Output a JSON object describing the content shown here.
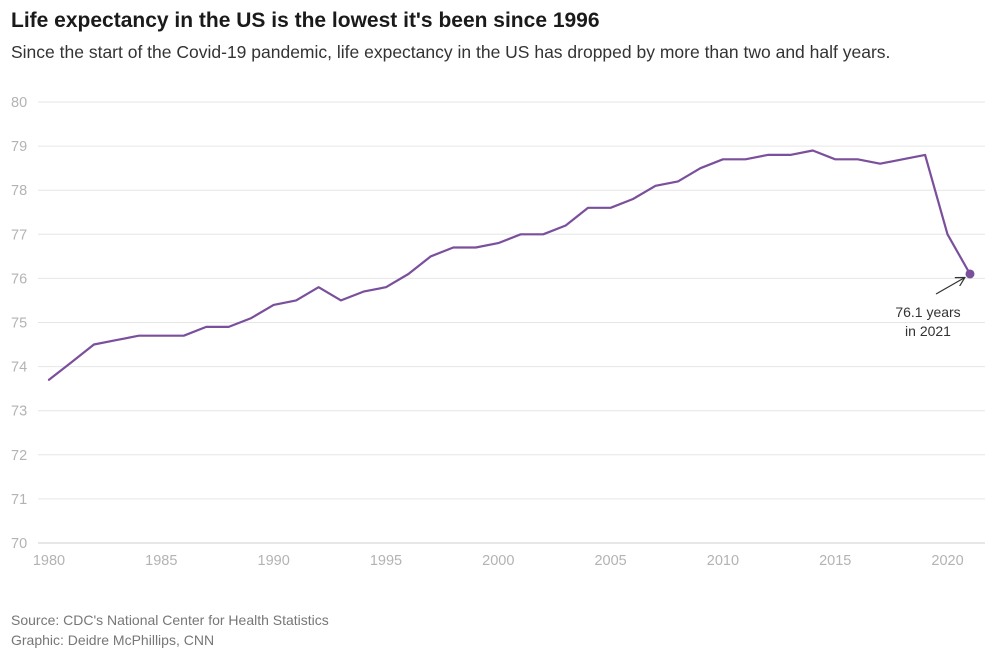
{
  "title": "Life expectancy in the US is the lowest it's been since 1996",
  "subtitle": "Since the start of the Covid-19 pandemic, life expectancy in the US has dropped by more than two and half years.",
  "source": {
    "line1": "Source: CDC's National Center for Health Statistics",
    "line2": "Graphic: Deidre McPhillips, CNN"
  },
  "chart_data": {
    "type": "line",
    "title": "Life expectancy in the US is the lowest it's been since 1996",
    "subtitle": "Since the start of the Covid-19 pandemic, life expectancy in the US has dropped by more than two and half years.",
    "xlabel": "",
    "ylabel": "",
    "xlim": [
      1980,
      2021
    ],
    "ylim": [
      70,
      80
    ],
    "x_ticks": [
      "1980",
      "1985",
      "1990",
      "1995",
      "2000",
      "2005",
      "2010",
      "2015",
      "2020"
    ],
    "y_ticks": [
      "70",
      "71",
      "72",
      "73",
      "74",
      "75",
      "76",
      "77",
      "78",
      "79",
      "80"
    ],
    "grid": true,
    "line_color": "#7a4f9c",
    "series": [
      {
        "x": [
          1980,
          1981,
          1982,
          1983,
          1984,
          1985,
          1986,
          1987,
          1988,
          1989,
          1990,
          1991,
          1992,
          1993,
          1994,
          1995,
          1996,
          1997,
          1998,
          1999,
          2000,
          2001,
          2002,
          2003,
          2004,
          2005,
          2006,
          2007,
          2008,
          2009,
          2010,
          2011,
          2012,
          2013,
          2014,
          2015,
          2016,
          2017,
          2018,
          2019,
          2020,
          2021
        ],
        "values": [
          73.7,
          74.1,
          74.5,
          74.6,
          74.7,
          74.7,
          74.7,
          74.9,
          74.9,
          75.1,
          75.4,
          75.5,
          75.8,
          75.5,
          75.7,
          75.8,
          76.1,
          76.5,
          76.7,
          76.7,
          76.8,
          77.0,
          77.0,
          77.2,
          77.6,
          77.6,
          77.8,
          78.1,
          78.2,
          78.5,
          78.7,
          78.7,
          78.8,
          78.8,
          78.9,
          78.7,
          78.7,
          78.6,
          78.7,
          78.8,
          77.0,
          76.1
        ]
      }
    ],
    "annotation": {
      "x": 2021,
      "y": 76.1,
      "line1": "76.1 years",
      "line2": "in 2021"
    }
  }
}
